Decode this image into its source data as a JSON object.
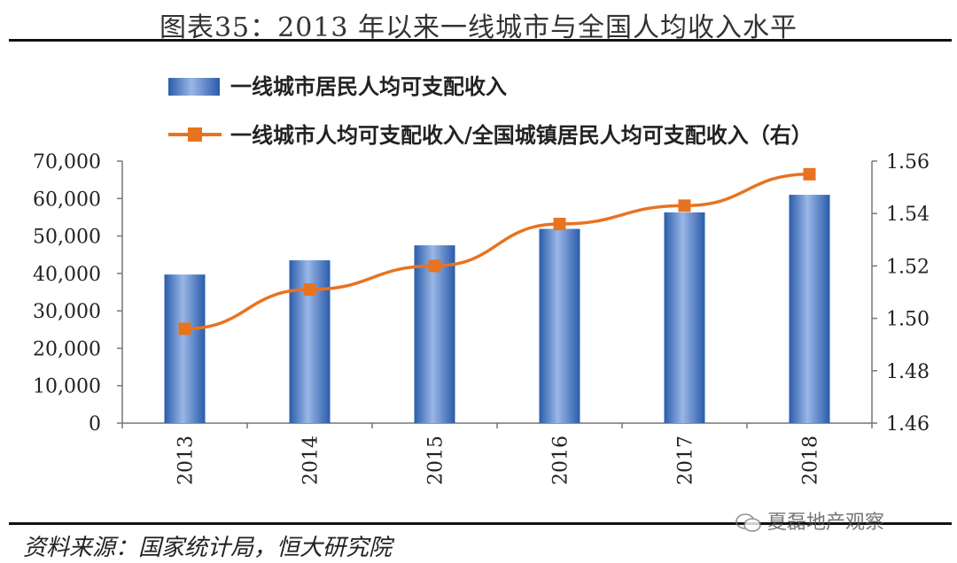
{
  "page": {
    "title": "图表35：2013 年以来一线城市与全国人均收入水平",
    "source": "资料来源：国家统计局，恒大研究院",
    "watermark": "夏磊地产观察"
  },
  "chart_data": {
    "type": "bar",
    "categories": [
      "2013",
      "2014",
      "2015",
      "2016",
      "2017",
      "2018"
    ],
    "series": [
      {
        "name": "一线城市居民人均可支配收入",
        "type": "bar",
        "axis": "left",
        "color": "#4472c4",
        "values": [
          39700,
          43500,
          47500,
          51900,
          56300,
          61000
        ]
      },
      {
        "name": "一线城市人均可支配收入/全国城镇居民人均可支配收入（右）",
        "type": "line",
        "axis": "right",
        "color": "#e8731f",
        "values": [
          1.496,
          1.511,
          1.52,
          1.536,
          1.543,
          1.555
        ]
      }
    ],
    "left_axis": {
      "ylim": [
        0,
        70000
      ],
      "ticks": [
        "0",
        "10,000",
        "20,000",
        "30,000",
        "40,000",
        "50,000",
        "60,000",
        "70,000"
      ]
    },
    "right_axis": {
      "ylim": [
        1.46,
        1.56
      ],
      "ticks": [
        "1.46",
        "1.48",
        "1.50",
        "1.52",
        "1.54",
        "1.56"
      ]
    },
    "grid": false,
    "legend_position": "top"
  }
}
